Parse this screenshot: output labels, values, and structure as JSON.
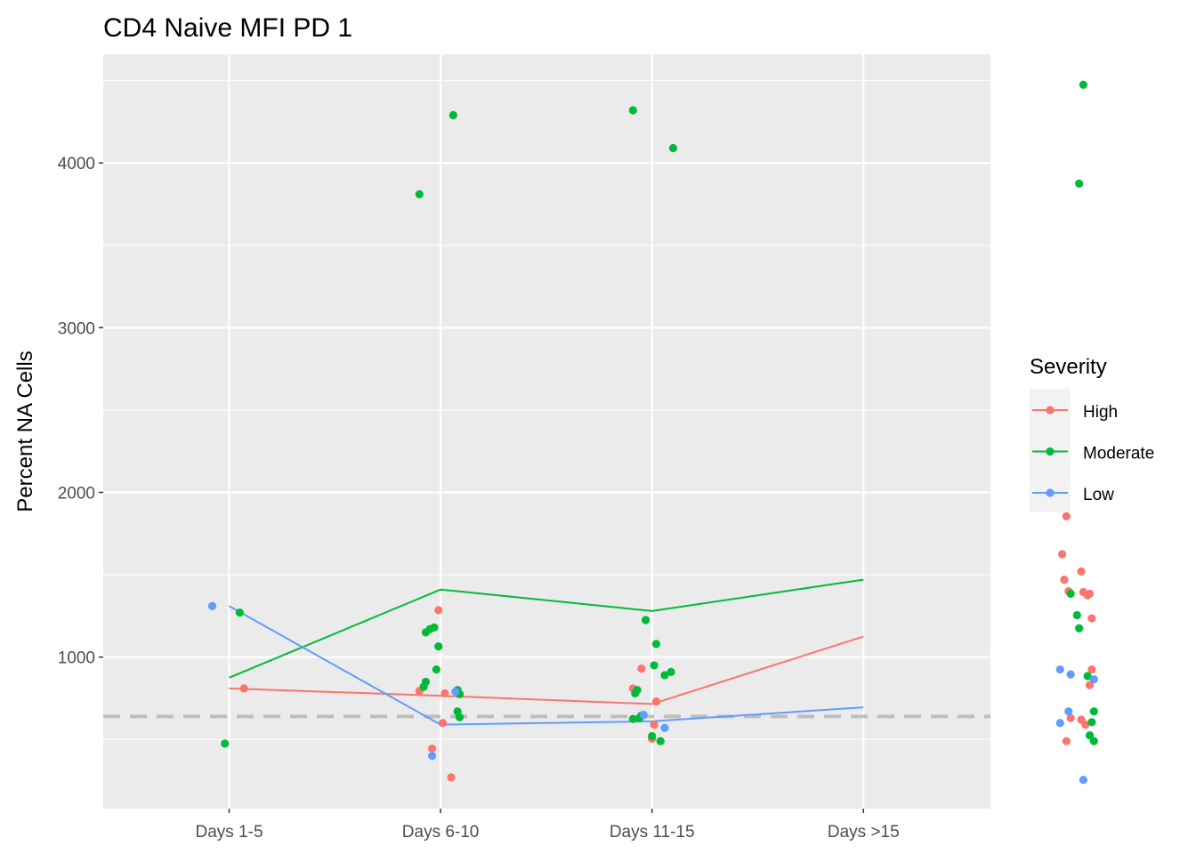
{
  "chart_data": {
    "type": "scatter",
    "title": "CD4 Naive MFI PD 1",
    "xlabel": "",
    "ylabel": "Percent NA Cells",
    "categories": [
      "Days 1-5",
      "Days 6-10",
      "Days 11-15",
      "Days >15"
    ],
    "ylim": [
      80,
      4660
    ],
    "yticks": [
      1000,
      2000,
      3000,
      4000
    ],
    "reference_line": {
      "y": 640,
      "style": "dashed",
      "color": "#bebebe"
    },
    "legend": {
      "title": "Severity",
      "position": "right"
    },
    "grid": true,
    "series": [
      {
        "name": "High",
        "color": "#F8766D",
        "line": [
          810,
          765,
          715,
          1125
        ],
        "points": [
          [
            0.07,
            810
          ],
          [
            0.9,
            795
          ],
          [
            0.96,
            445
          ],
          [
            0.99,
            1285
          ],
          [
            1.01,
            600
          ],
          [
            1.02,
            780
          ],
          [
            1.05,
            270
          ],
          [
            1.91,
            810
          ],
          [
            1.95,
            930
          ],
          [
            2.0,
            505
          ],
          [
            2.01,
            590
          ],
          [
            2.02,
            730
          ],
          [
            3.94,
            1625
          ],
          [
            3.95,
            1470
          ],
          [
            3.96,
            1855
          ],
          [
            3.97,
            1400
          ],
          [
            3.96,
            490
          ],
          [
            3.98,
            630
          ],
          [
            4.03,
            1520
          ],
          [
            4.04,
            1395
          ],
          [
            4.03,
            620
          ],
          [
            4.05,
            590
          ],
          [
            4.06,
            1375
          ],
          [
            4.07,
            1385
          ],
          [
            4.07,
            830
          ],
          [
            4.08,
            1235
          ],
          [
            4.08,
            925
          ]
        ]
      },
      {
        "name": "Moderate",
        "color": "#00BA38",
        "line": [
          875,
          1410,
          1280,
          1470
        ],
        "points": [
          [
            -0.02,
            475
          ],
          [
            0.05,
            1270
          ],
          [
            0.9,
            3810
          ],
          [
            0.92,
            820
          ],
          [
            0.93,
            850
          ],
          [
            0.93,
            1150
          ],
          [
            0.95,
            1170
          ],
          [
            0.97,
            1180
          ],
          [
            0.98,
            925
          ],
          [
            0.99,
            1065
          ],
          [
            1.06,
            4290
          ],
          [
            1.08,
            800
          ],
          [
            1.08,
            670
          ],
          [
            1.09,
            635
          ],
          [
            1.09,
            775
          ],
          [
            1.91,
            4320
          ],
          [
            1.91,
            625
          ],
          [
            1.92,
            780
          ],
          [
            1.93,
            800
          ],
          [
            1.94,
            630
          ],
          [
            1.95,
            645
          ],
          [
            1.97,
            1225
          ],
          [
            2.0,
            520
          ],
          [
            2.01,
            950
          ],
          [
            2.02,
            1080
          ],
          [
            2.04,
            490
          ],
          [
            2.06,
            890
          ],
          [
            2.09,
            910
          ],
          [
            2.1,
            4090
          ],
          [
            3.98,
            1385
          ],
          [
            4.01,
            1255
          ],
          [
            4.02,
            1175
          ],
          [
            4.02,
            3875
          ],
          [
            4.04,
            4475
          ],
          [
            4.06,
            885
          ],
          [
            4.07,
            525
          ],
          [
            4.08,
            605
          ],
          [
            4.09,
            670
          ],
          [
            4.09,
            490
          ]
        ]
      },
      {
        "name": "Low",
        "color": "#619CFF",
        "line": [
          1310,
          590,
          610,
          695
        ],
        "points": [
          [
            -0.08,
            1310
          ],
          [
            0.96,
            400
          ],
          [
            1.07,
            790
          ],
          [
            1.96,
            650
          ],
          [
            2.06,
            570
          ],
          [
            3.93,
            925
          ],
          [
            3.93,
            600
          ],
          [
            3.98,
            895
          ],
          [
            3.97,
            670
          ],
          [
            4.04,
            255
          ],
          [
            4.09,
            865
          ]
        ]
      }
    ]
  }
}
